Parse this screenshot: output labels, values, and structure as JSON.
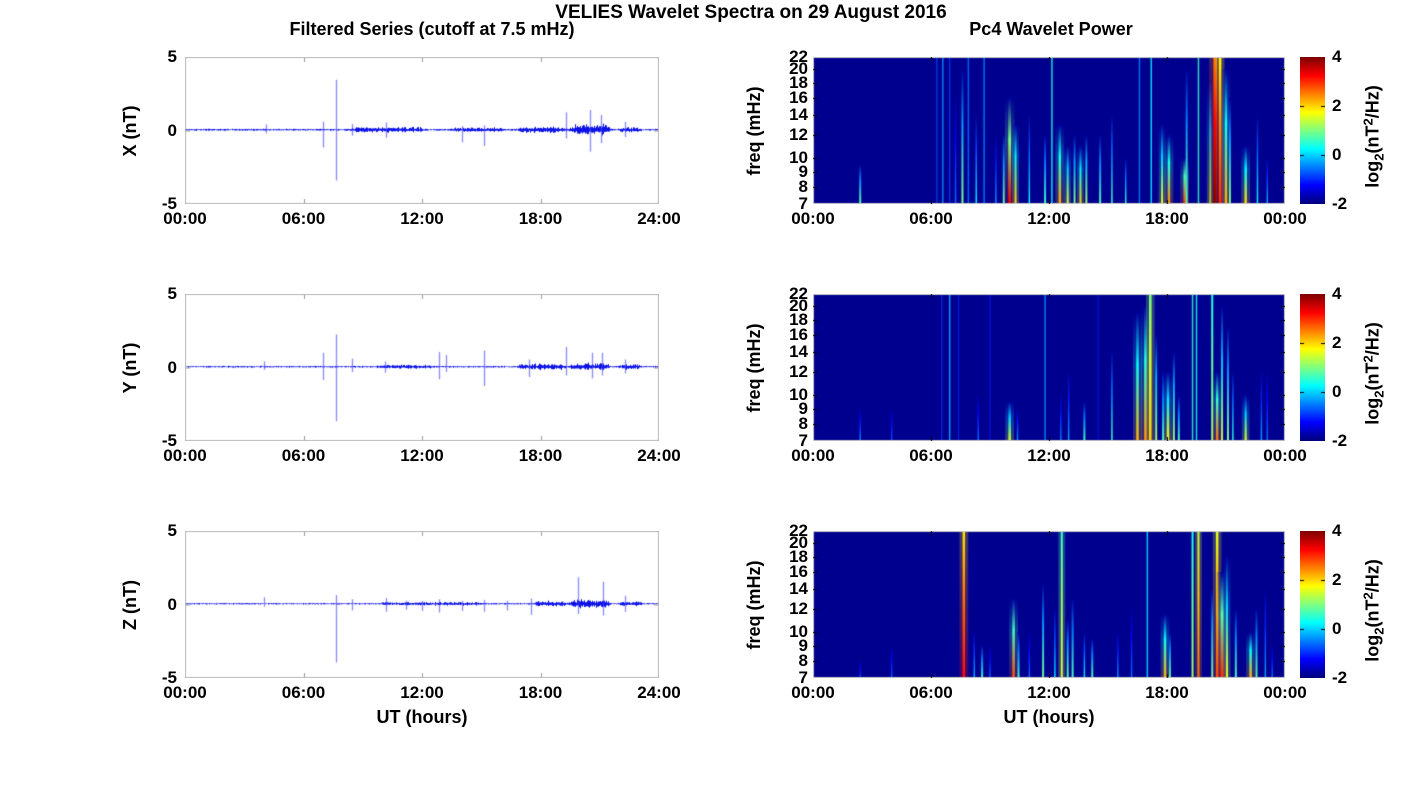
{
  "figure": {
    "title": "VELIES Wavelet Spectra on 29 August 2016"
  },
  "left_column": {
    "title": "Filtered Series (cutoff at 7.5 mHz)",
    "xlabel": "UT (hours)",
    "xticks": [
      "00:00",
      "06:00",
      "12:00",
      "18:00",
      "24:00"
    ],
    "yticks": [
      "5",
      "0",
      "-5"
    ],
    "rows": [
      {
        "component": "X",
        "ylabel": "X (nT)"
      },
      {
        "component": "Y",
        "ylabel": "Y (nT)"
      },
      {
        "component": "Z",
        "ylabel": "Z (nT)"
      }
    ]
  },
  "right_column": {
    "title": "Pc4 Wavelet Power",
    "xlabel": "UT (hours)",
    "xticks": [
      "00:00",
      "06:00",
      "12:00",
      "18:00",
      "00:00"
    ],
    "ylabel": "freq (mHz)",
    "yticks": [
      "22",
      "20",
      "18",
      "16",
      "14",
      "12",
      "10",
      "9",
      "8",
      "7"
    ],
    "colorbar": {
      "ticks": [
        "4",
        "2",
        "0",
        "-2"
      ],
      "label_text": "log2(nT^2/Hz)",
      "label_parts": {
        "prefix": "log",
        "sub": "2",
        "mid": "(nT",
        "sup": "2",
        "suffix": "/Hz)"
      },
      "colormap": "jet"
    }
  },
  "colors": {
    "series_blue": "#0008E6",
    "spectrogram_background": "#00008C",
    "text": "#000000",
    "axis_frame_gray": "#B9B9B9"
  },
  "chart_data": [
    {
      "type": "line",
      "panel": "filtered-series-x",
      "ylabel": "X (nT)",
      "ylim": [
        -5,
        5
      ],
      "x_hours": [
        0,
        24
      ],
      "baseline_offset_nT": 0.05,
      "base_noise_nT": 0.055,
      "burst_format": "[t_start_h, t_end_h, amplitude_nT]",
      "noise_bursts": [
        [
          8.3,
          12.2,
          0.1
        ],
        [
          13.3,
          16.3,
          0.07
        ],
        [
          16.8,
          19.4,
          0.13
        ],
        [
          19.4,
          21.6,
          0.28
        ],
        [
          21.9,
          23.2,
          0.1
        ]
      ],
      "spike_format": "[t_h, max_nT, min_nT]",
      "spikes": [
        [
          4.1,
          0.35,
          -0.25
        ],
        [
          7.0,
          0.55,
          -1.2
        ],
        [
          7.67,
          3.4,
          -3.45
        ],
        [
          8.45,
          0.4,
          -0.4
        ],
        [
          10.2,
          0.5,
          -0.55
        ],
        [
          14.0,
          0.25,
          -0.85
        ],
        [
          15.15,
          0.3,
          -1.1
        ],
        [
          19.3,
          1.2,
          -0.6
        ],
        [
          20.5,
          1.35,
          -1.5
        ],
        [
          21.05,
          1.0,
          -0.9
        ],
        [
          22.3,
          0.55,
          -0.5
        ]
      ]
    },
    {
      "type": "line",
      "panel": "filtered-series-y",
      "ylabel": "Y (nT)",
      "ylim": [
        -5,
        5
      ],
      "x_hours": [
        0,
        24
      ],
      "baseline_offset_nT": 0.05,
      "base_noise_nT": 0.05,
      "burst_format": "[t_start_h, t_end_h, amplitude_nT]",
      "noise_bursts": [
        [
          9.6,
          12.6,
          0.06
        ],
        [
          16.8,
          19.4,
          0.13
        ],
        [
          19.4,
          21.6,
          0.16
        ],
        [
          21.9,
          23.2,
          0.1
        ]
      ],
      "spike_format": "[t_h, max_nT, min_nT]",
      "spikes": [
        [
          4.0,
          0.35,
          -0.2
        ],
        [
          7.0,
          0.95,
          -0.9
        ],
        [
          7.67,
          2.2,
          -3.7
        ],
        [
          8.45,
          0.55,
          -0.35
        ],
        [
          10.15,
          0.35,
          -0.4
        ],
        [
          12.85,
          1.0,
          -0.85
        ],
        [
          13.2,
          0.8,
          -0.35
        ],
        [
          15.15,
          1.1,
          -1.3
        ],
        [
          17.4,
          0.5,
          -0.7
        ],
        [
          19.3,
          1.35,
          -0.6
        ],
        [
          20.6,
          0.95,
          -0.8
        ],
        [
          21.1,
          0.95,
          -0.6
        ],
        [
          22.3,
          0.5,
          -0.45
        ]
      ]
    },
    {
      "type": "line",
      "panel": "filtered-series-z",
      "ylabel": "Z (nT)",
      "ylim": [
        -5,
        5
      ],
      "x_hours": [
        0,
        24
      ],
      "baseline_offset_nT": 0.05,
      "base_noise_nT": 0.045,
      "burst_format": "[t_start_h, t_end_h, amplitude_nT]",
      "noise_bursts": [
        [
          9.8,
          15.2,
          0.05
        ],
        [
          17.6,
          19.4,
          0.12
        ],
        [
          19.4,
          21.6,
          0.2
        ],
        [
          21.9,
          23.2,
          0.1
        ]
      ],
      "spike_format": "[t_h, max_nT, min_nT]",
      "spikes": [
        [
          4.0,
          0.45,
          -0.2
        ],
        [
          7.67,
          0.6,
          -4.0
        ],
        [
          8.45,
          0.3,
          -0.45
        ],
        [
          10.2,
          0.4,
          -0.55
        ],
        [
          11.2,
          0.2,
          -0.4
        ],
        [
          12.0,
          0.2,
          -0.5
        ],
        [
          12.85,
          0.3,
          -0.6
        ],
        [
          14.0,
          0.2,
          -0.5
        ],
        [
          15.15,
          0.25,
          -0.55
        ],
        [
          16.3,
          0.2,
          -0.45
        ],
        [
          17.5,
          0.35,
          -0.75
        ],
        [
          19.9,
          1.8,
          -0.7
        ],
        [
          21.15,
          1.5,
          -0.8
        ],
        [
          22.3,
          0.55,
          -0.55
        ]
      ]
    },
    {
      "type": "heatmap",
      "panel": "wavelet-power-x",
      "ylabel": "freq (mHz)",
      "yscale": "log",
      "ylim_mHz": [
        7,
        22
      ],
      "x_hours": [
        0,
        24
      ],
      "clim_log2_power": [
        -2,
        4
      ],
      "colormap": "jet",
      "streak_format": "[t_h, f_top_mHz, log2_power, width_px]",
      "streaks": [
        [
          2.4,
          9.5,
          0.8,
          2
        ],
        [
          6.3,
          22,
          -0.8,
          1.2
        ],
        [
          6.6,
          22,
          -0.4,
          1.5
        ],
        [
          6.95,
          22,
          -0.9,
          1.2
        ],
        [
          7.25,
          16,
          -0.6,
          1.5
        ],
        [
          7.6,
          20,
          1.0,
          2
        ],
        [
          7.9,
          22,
          -0.6,
          1.5
        ],
        [
          8.3,
          14,
          0.2,
          1.5
        ],
        [
          8.7,
          22,
          -0.5,
          1.5
        ],
        [
          9.3,
          12,
          -0.4,
          1.5
        ],
        [
          9.7,
          12,
          0.8,
          2
        ],
        [
          10.0,
          16,
          3.4,
          2.8
        ],
        [
          10.3,
          13,
          2.0,
          2
        ],
        [
          11.0,
          14,
          0.3,
          1.5
        ],
        [
          11.8,
          12,
          0.6,
          2
        ],
        [
          12.15,
          22,
          0.4,
          1.5
        ],
        [
          12.55,
          13,
          2.3,
          2.5
        ],
        [
          12.95,
          11,
          1.5,
          2
        ],
        [
          13.3,
          12,
          1.0,
          2
        ],
        [
          13.6,
          11,
          2.0,
          2
        ],
        [
          13.9,
          12,
          1.2,
          2
        ],
        [
          14.6,
          12,
          0.7,
          2
        ],
        [
          15.2,
          14,
          0.6,
          1.5
        ],
        [
          15.9,
          10,
          0.5,
          1.5
        ],
        [
          16.6,
          22,
          -0.5,
          1.5
        ],
        [
          17.2,
          22,
          0.2,
          1.5
        ],
        [
          17.75,
          13,
          1.6,
          2
        ],
        [
          18.1,
          12,
          2.4,
          2.5
        ],
        [
          18.9,
          10,
          2.9,
          2.5
        ],
        [
          19.0,
          20,
          0.8,
          2
        ],
        [
          19.6,
          22,
          0.6,
          1.5
        ],
        [
          20.2,
          18,
          1.5,
          2
        ],
        [
          20.45,
          22,
          4.0,
          3.5
        ],
        [
          20.7,
          22,
          3.0,
          2.5
        ],
        [
          21.0,
          20,
          2.2,
          2.5
        ],
        [
          21.2,
          16,
          1.0,
          2
        ],
        [
          22.0,
          11,
          2.0,
          2.5
        ],
        [
          22.6,
          14,
          0.3,
          1.5
        ],
        [
          23.1,
          10,
          -0.2,
          1.5
        ]
      ]
    },
    {
      "type": "heatmap",
      "panel": "wavelet-power-y",
      "ylabel": "freq (mHz)",
      "yscale": "log",
      "ylim_mHz": [
        7,
        22
      ],
      "x_hours": [
        0,
        24
      ],
      "clim_log2_power": [
        -2,
        4
      ],
      "colormap": "jet",
      "streak_format": "[t_h, f_top_mHz, log2_power, width_px]",
      "streaks": [
        [
          2.4,
          9,
          -0.5,
          1.5
        ],
        [
          4.0,
          9,
          -0.8,
          1.5
        ],
        [
          6.55,
          22,
          -0.9,
          1
        ],
        [
          6.95,
          22,
          -0.2,
          1.5
        ],
        [
          7.4,
          22,
          -1.0,
          1
        ],
        [
          8.4,
          10,
          -0.6,
          1.5
        ],
        [
          9.0,
          22,
          -1.1,
          1
        ],
        [
          10.0,
          9.5,
          1.5,
          2.5
        ],
        [
          10.4,
          9,
          -0.4,
          1.5
        ],
        [
          11.8,
          22,
          -0.4,
          1.5
        ],
        [
          12.6,
          10,
          -0.5,
          1.5
        ],
        [
          13.0,
          12,
          -0.3,
          1.5
        ],
        [
          13.8,
          9.5,
          0.6,
          2
        ],
        [
          14.5,
          22,
          -1.1,
          1
        ],
        [
          15.2,
          14,
          0.6,
          1.5
        ],
        [
          16.5,
          19,
          2.2,
          2.5
        ],
        [
          16.9,
          20,
          2.4,
          2.5
        ],
        [
          17.15,
          22,
          2.0,
          2.5
        ],
        [
          17.45,
          16,
          1.2,
          2
        ],
        [
          17.8,
          12,
          0.6,
          2
        ],
        [
          18.05,
          12,
          1.8,
          2.5
        ],
        [
          18.35,
          14,
          1.2,
          2
        ],
        [
          18.6,
          10,
          0.7,
          2
        ],
        [
          19.3,
          22,
          0.6,
          1.5
        ],
        [
          19.5,
          22,
          0.3,
          1.5
        ],
        [
          20.3,
          22,
          1.2,
          2
        ],
        [
          20.55,
          12,
          2.6,
          2.5
        ],
        [
          20.8,
          20,
          1.4,
          2
        ],
        [
          21.1,
          17,
          1.0,
          2
        ],
        [
          21.35,
          12,
          0.5,
          1.5
        ],
        [
          22.0,
          10,
          1.5,
          2.2
        ],
        [
          22.8,
          12,
          -0.3,
          1.5
        ],
        [
          23.1,
          12,
          -0.6,
          1.5
        ]
      ]
    },
    {
      "type": "heatmap",
      "panel": "wavelet-power-z",
      "ylabel": "freq (mHz)",
      "yscale": "log",
      "ylim_mHz": [
        7,
        22
      ],
      "x_hours": [
        0,
        24
      ],
      "clim_log2_power": [
        -2,
        4
      ],
      "colormap": "jet",
      "streak_format": "[t_h, f_top_mHz, log2_power, width_px]",
      "streaks": [
        [
          2.4,
          8,
          -0.9,
          1.5
        ],
        [
          4.0,
          9,
          -0.7,
          1.5
        ],
        [
          7.67,
          22,
          3.2,
          2.5
        ],
        [
          8.2,
          10,
          -0.2,
          1.5
        ],
        [
          8.6,
          9,
          0.6,
          2
        ],
        [
          9.0,
          9,
          -0.7,
          1.5
        ],
        [
          10.2,
          13,
          2.8,
          2.5
        ],
        [
          10.45,
          10,
          0.6,
          2
        ],
        [
          11.0,
          10,
          -0.6,
          1.5
        ],
        [
          11.7,
          14.5,
          0.9,
          2
        ],
        [
          12.3,
          12,
          0.1,
          1.5
        ],
        [
          12.65,
          22,
          1.5,
          2
        ],
        [
          12.95,
          11,
          0.8,
          2
        ],
        [
          13.2,
          13,
          0.7,
          2
        ],
        [
          13.8,
          10,
          0.2,
          1.5
        ],
        [
          14.2,
          9.5,
          0.7,
          2
        ],
        [
          15.5,
          10,
          -0.4,
          1.5
        ],
        [
          16.2,
          12,
          -0.6,
          1.5
        ],
        [
          17.0,
          22,
          0.1,
          1.5
        ],
        [
          17.9,
          11.5,
          2.2,
          2.5
        ],
        [
          18.15,
          10,
          0.8,
          2
        ],
        [
          19.3,
          22,
          1.2,
          2
        ],
        [
          19.6,
          22,
          2.6,
          2
        ],
        [
          20.3,
          14,
          0.9,
          2
        ],
        [
          20.55,
          22,
          2.8,
          2.5
        ],
        [
          20.8,
          16,
          3.0,
          3
        ],
        [
          21.05,
          18,
          1.6,
          2
        ],
        [
          21.5,
          12,
          0.7,
          2
        ],
        [
          22.25,
          10,
          2.2,
          2.5
        ],
        [
          22.55,
          12,
          0.8,
          2
        ],
        [
          23.0,
          14,
          -0.3,
          1.5
        ],
        [
          23.35,
          9,
          -0.6,
          1.5
        ]
      ]
    }
  ]
}
